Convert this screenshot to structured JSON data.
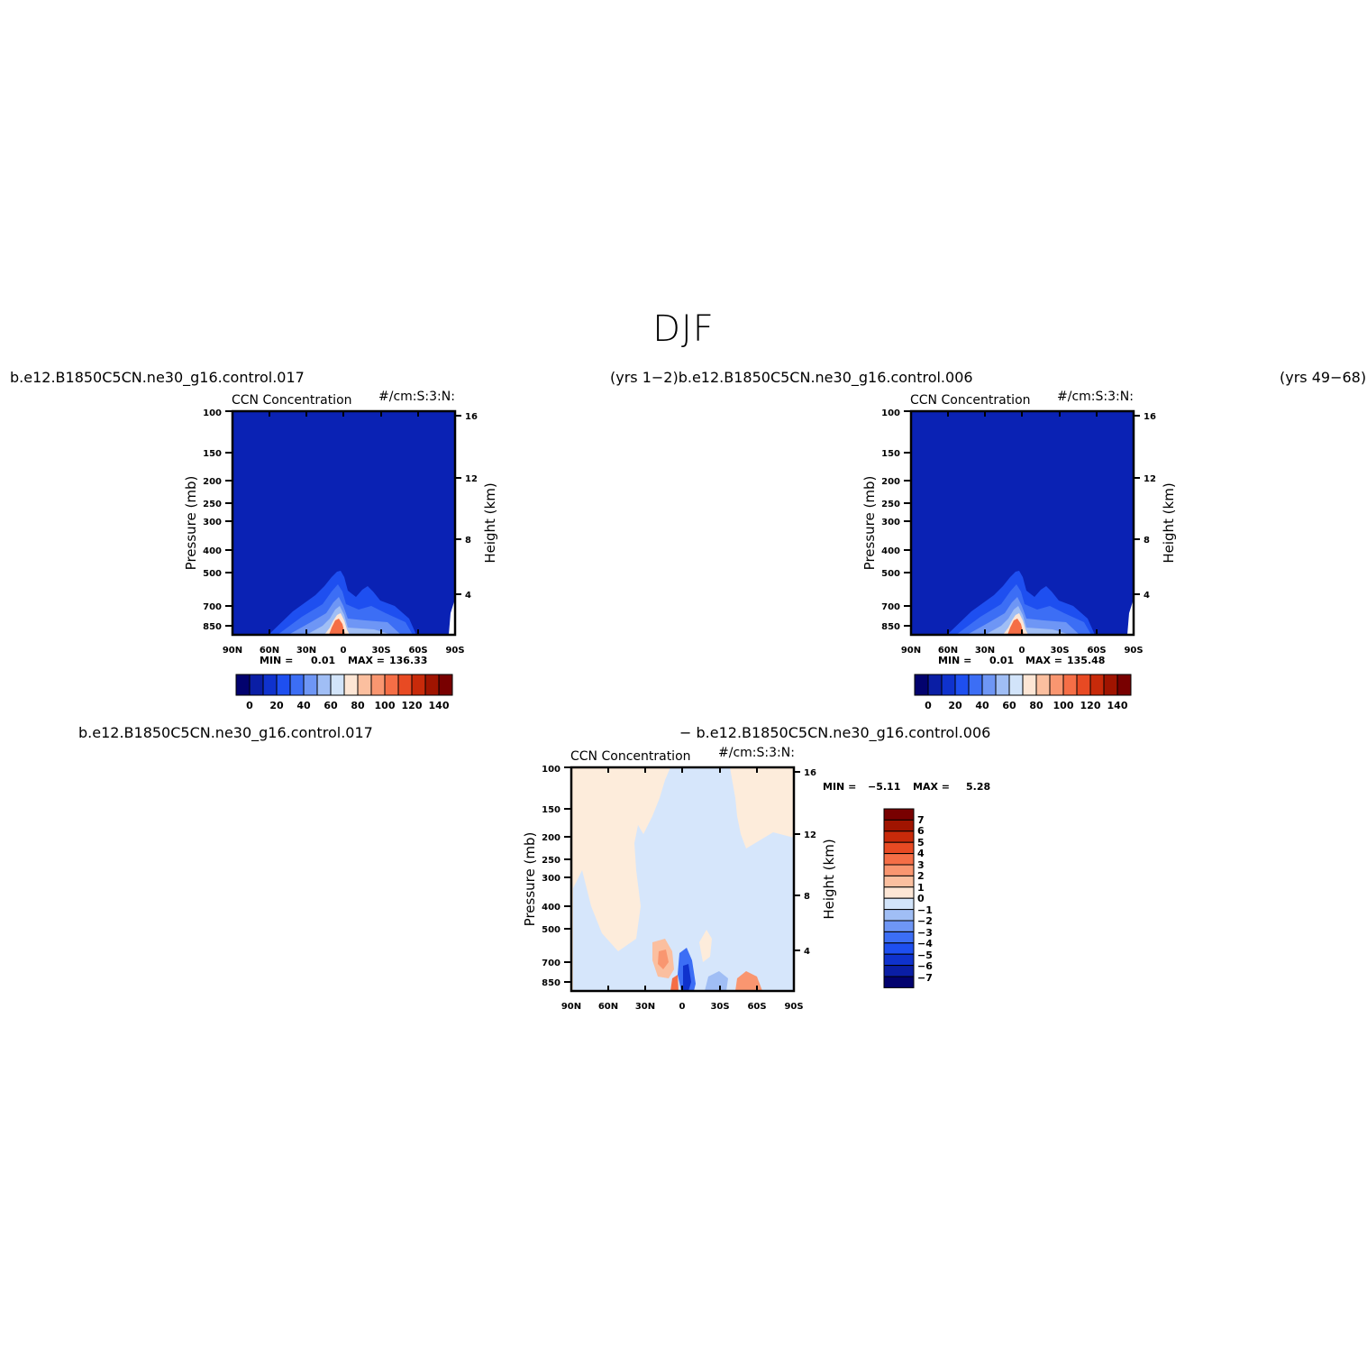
{
  "figure": {
    "title": "DJF",
    "top_left_case": "b.e12.B1850C5CN.ne30_g16.control.017",
    "top_left_years_and_case": "(yrs 1−2)b.e12.B1850C5CN.ne30_g16.control.006",
    "top_right_years": "(yrs 49−68)",
    "diff_left_case": "b.e12.B1850C5CN.ne30_g16.control.017",
    "diff_right_case": "− b.e12.B1850C5CN.ne30_g16.control.006"
  },
  "chart_data": [
    {
      "type": "heatmap",
      "panel": "control.017",
      "title": "CCN Concentration",
      "units": "#/cm:S:3:N:",
      "ylabel": "Pressure (mb)",
      "ylabel_right": "Height (km)",
      "x_ticks": [
        "90N",
        "60N",
        "30N",
        "0",
        "30S",
        "60S",
        "90S"
      ],
      "y_ticks": [
        "100",
        "150",
        "200",
        "250",
        "300",
        "400",
        "500",
        "700",
        "850"
      ],
      "y_right_ticks": [
        "16",
        "12",
        "8",
        "4"
      ],
      "min_label": "MIN =",
      "min_value": "0.01",
      "max_label": "MAX =",
      "max_value": "136.33",
      "colorbar_labels": [
        "0",
        "20",
        "40",
        "60",
        "80",
        "100",
        "120",
        "140"
      ],
      "colorbar_colors": [
        "#02026e",
        "#0a1ea5",
        "#0f32cd",
        "#1e4ff0",
        "#3c6ef5",
        "#6e96f5",
        "#a0bef5",
        "#d2e4fa",
        "#fde6d5",
        "#fbbf9f",
        "#f99670",
        "#f56e46",
        "#e84a23",
        "#c82a0a",
        "#a01400",
        "#780000"
      ]
    },
    {
      "type": "heatmap",
      "panel": "control.006",
      "title": "CCN Concentration",
      "units": "#/cm:S:3:N:",
      "ylabel": "Pressure (mb)",
      "ylabel_right": "Height (km)",
      "x_ticks": [
        "90N",
        "60N",
        "30N",
        "0",
        "30S",
        "60S",
        "90S"
      ],
      "y_ticks": [
        "100",
        "150",
        "200",
        "250",
        "300",
        "400",
        "500",
        "700",
        "850"
      ],
      "y_right_ticks": [
        "16",
        "12",
        "8",
        "4"
      ],
      "min_label": "MIN =",
      "min_value": "0.01",
      "max_label": "MAX =",
      "max_value": "135.48",
      "colorbar_labels": [
        "0",
        "20",
        "40",
        "60",
        "80",
        "100",
        "120",
        "140"
      ],
      "colorbar_colors": [
        "#02026e",
        "#0a1ea5",
        "#0f32cd",
        "#1e4ff0",
        "#3c6ef5",
        "#6e96f5",
        "#a0bef5",
        "#d2e4fa",
        "#fde6d5",
        "#fbbf9f",
        "#f99670",
        "#f56e46",
        "#e84a23",
        "#c82a0a",
        "#a01400",
        "#780000"
      ]
    },
    {
      "type": "heatmap",
      "panel": "difference",
      "title": "CCN Concentration",
      "units": "#/cm:S:3:N:",
      "ylabel": "Pressure (mb)",
      "ylabel_right": "Height (km)",
      "x_ticks": [
        "90N",
        "60N",
        "30N",
        "0",
        "30S",
        "60S",
        "90S"
      ],
      "y_ticks": [
        "100",
        "150",
        "200",
        "250",
        "300",
        "400",
        "500",
        "700",
        "850"
      ],
      "y_right_ticks": [
        "16",
        "12",
        "8",
        "4"
      ],
      "min_label": "MIN =",
      "min_value": "−5.11",
      "max_label": "MAX =",
      "max_value": "5.28",
      "colorbar_labels": [
        "7",
        "6",
        "5",
        "4",
        "3",
        "2",
        "1",
        "0",
        "−1",
        "−2",
        "−3",
        "−4",
        "−5",
        "−6",
        "−7"
      ],
      "colorbar_colors": [
        "#780000",
        "#a01400",
        "#c82a0a",
        "#e84a23",
        "#f56e46",
        "#f99670",
        "#fbbf9f",
        "#fde6d5",
        "#d2e4fa",
        "#a0bef5",
        "#6e96f5",
        "#3c6ef5",
        "#1e4ff0",
        "#0f32cd",
        "#0a1ea5",
        "#02026e"
      ]
    }
  ]
}
